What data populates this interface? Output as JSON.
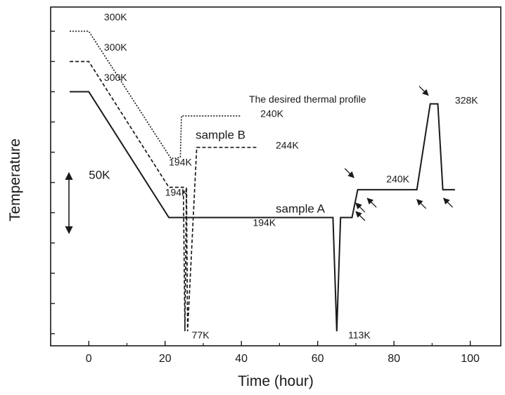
{
  "chart_data": {
    "type": "line",
    "xlabel": "Time (hour)",
    "ylabel": "Temperature",
    "xlim": [
      -10,
      108
    ],
    "ylim": [
      65,
      345
    ],
    "x_ticks": [
      0,
      20,
      40,
      60,
      80,
      100
    ],
    "y_ticks_unlabeled": [
      75,
      100,
      125,
      150,
      175,
      200,
      225,
      250,
      275,
      300,
      325
    ],
    "grid": false,
    "series": [
      {
        "name": "The desired thermal profile",
        "style": "dotted",
        "points": [
          [
            -5,
            325
          ],
          [
            0,
            325
          ],
          [
            21.5,
            220
          ],
          [
            23,
            220
          ],
          [
            24,
            221
          ],
          [
            24.3,
            255
          ],
          [
            40,
            255
          ]
        ]
      },
      {
        "name": "sample B",
        "style": "dashed",
        "points": [
          [
            -5,
            300
          ],
          [
            0,
            300
          ],
          [
            21,
            196
          ],
          [
            24.8,
            196
          ],
          [
            25.2,
            77
          ],
          [
            25.6,
            196
          ],
          [
            25.9,
            77
          ],
          [
            28.3,
            229
          ],
          [
            44.5,
            229
          ]
        ]
      },
      {
        "name": "sample A",
        "style": "solid",
        "points": [
          [
            -5,
            275
          ],
          [
            0,
            275
          ],
          [
            21,
            171
          ],
          [
            64,
            171
          ],
          [
            65,
            77
          ],
          [
            66,
            171
          ],
          [
            69,
            171
          ],
          [
            70.5,
            194
          ],
          [
            86,
            194
          ],
          [
            89.5,
            265
          ],
          [
            91.5,
            265
          ],
          [
            92.8,
            194
          ],
          [
            96,
            194
          ]
        ]
      }
    ],
    "annotations": [
      {
        "text": "300K",
        "x": 4,
        "y": 334
      },
      {
        "text": "300K",
        "x": 4,
        "y": 309
      },
      {
        "text": "300K",
        "x": 4,
        "y": 284
      },
      {
        "text": "The desired thermal profile",
        "x": 42,
        "y": 266
      },
      {
        "text": "240K",
        "x": 45,
        "y": 254
      },
      {
        "text": "sample B",
        "x": 28,
        "y": 236
      },
      {
        "text": "244K",
        "x": 49,
        "y": 228
      },
      {
        "text": "194K",
        "x": 21,
        "y": 214
      },
      {
        "text": "194K",
        "x": 20,
        "y": 189
      },
      {
        "text": "328K",
        "x": 96,
        "y": 265
      },
      {
        "text": "240K",
        "x": 78,
        "y": 200
      },
      {
        "text": "sample A",
        "x": 49,
        "y": 175
      },
      {
        "text": "194K",
        "x": 43,
        "y": 164
      },
      {
        "text": "77K",
        "x": 27,
        "y": 71
      },
      {
        "text": "113K",
        "x": 68,
        "y": 71
      },
      {
        "text": "50K",
        "x": 0,
        "y": 203
      }
    ],
    "scale_bar": {
      "label": "50K",
      "from": 158,
      "to": 208,
      "x": -5.2
    },
    "markers": [
      {
        "x": 69.5,
        "y": 204,
        "dir": "se"
      },
      {
        "x": 70,
        "y": 176,
        "dir": "nw"
      },
      {
        "x": 70,
        "y": 183,
        "dir": "nw"
      },
      {
        "x": 73,
        "y": 187,
        "dir": "nw"
      },
      {
        "x": 86,
        "y": 186,
        "dir": "nw"
      },
      {
        "x": 89,
        "y": 272,
        "dir": "se"
      },
      {
        "x": 93,
        "y": 187,
        "dir": "nw"
      }
    ]
  }
}
